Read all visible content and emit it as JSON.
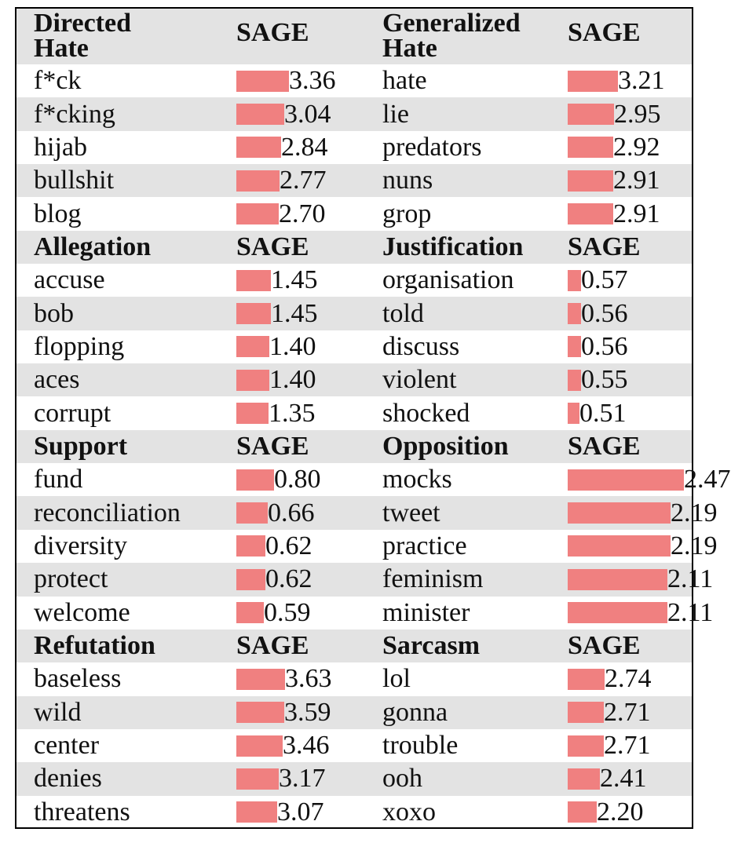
{
  "bar_color": "#f08080",
  "blocks": [
    {
      "left": {
        "title": "Directed Hate",
        "title_lines": [
          "Directed",
          "Hate"
        ],
        "col": "SAGE",
        "rows": [
          {
            "word": "f*ck",
            "score": "3.36"
          },
          {
            "word": "f*cking",
            "score": "3.04"
          },
          {
            "word": "hijab",
            "score": "2.84"
          },
          {
            "word": "bullshit",
            "score": "2.77"
          },
          {
            "word": "blog",
            "score": "2.70"
          }
        ]
      },
      "right": {
        "title": "Generalized Hate",
        "title_lines": [
          "Generalized",
          "Hate"
        ],
        "col": "SAGE",
        "rows": [
          {
            "word": "hate",
            "score": "3.21"
          },
          {
            "word": "lie",
            "score": "2.95"
          },
          {
            "word": "predators",
            "score": "2.92"
          },
          {
            "word": "nuns",
            "score": "2.91"
          },
          {
            "word": "grop",
            "score": "2.91"
          }
        ]
      }
    },
    {
      "left": {
        "title": "Allegation",
        "col": "SAGE",
        "rows": [
          {
            "word": "accuse",
            "score": "1.45"
          },
          {
            "word": "bob",
            "score": "1.45"
          },
          {
            "word": "flopping",
            "score": "1.40"
          },
          {
            "word": "aces",
            "score": "1.40"
          },
          {
            "word": "corrupt",
            "score": "1.35"
          }
        ]
      },
      "right": {
        "title": "Justification",
        "col": "SAGE",
        "rows": [
          {
            "word": "organisation",
            "score": "0.57"
          },
          {
            "word": "told",
            "score": "0.56"
          },
          {
            "word": "discuss",
            "score": "0.56"
          },
          {
            "word": "violent",
            "score": "0.55"
          },
          {
            "word": "shocked",
            "score": "0.51"
          }
        ]
      }
    },
    {
      "left": {
        "title": "Support",
        "col": "SAGE",
        "rows": [
          {
            "word": "fund",
            "score": "0.80"
          },
          {
            "word": "reconciliation",
            "score": "0.66"
          },
          {
            "word": "diversity",
            "score": "0.62"
          },
          {
            "word": "protect",
            "score": "0.62"
          },
          {
            "word": "welcome",
            "score": "0.59"
          }
        ]
      },
      "right": {
        "title": "Opposition",
        "col": "SAGE",
        "rows": [
          {
            "word": "mocks",
            "score": "2.47"
          },
          {
            "word": "tweet",
            "score": "2.19"
          },
          {
            "word": "practice",
            "score": "2.19"
          },
          {
            "word": "feminism",
            "score": "2.11"
          },
          {
            "word": "minister",
            "score": "2.11"
          }
        ]
      }
    },
    {
      "left": {
        "title": "Refutation",
        "col": "SAGE",
        "rows": [
          {
            "word": "baseless",
            "score": "3.63"
          },
          {
            "word": "wild",
            "score": "3.59"
          },
          {
            "word": "center",
            "score": "3.46"
          },
          {
            "word": "denies",
            "score": "3.17"
          },
          {
            "word": "threatens",
            "score": "3.07"
          }
        ]
      },
      "right": {
        "title": "Sarcasm",
        "col": "SAGE",
        "rows": [
          {
            "word": "lol",
            "score": "2.74"
          },
          {
            "word": "gonna",
            "score": "2.71"
          },
          {
            "word": "trouble",
            "score": "2.71"
          },
          {
            "word": "ooh",
            "score": "2.41"
          },
          {
            "word": "xoxo",
            "score": "2.20"
          }
        ]
      }
    }
  ]
}
